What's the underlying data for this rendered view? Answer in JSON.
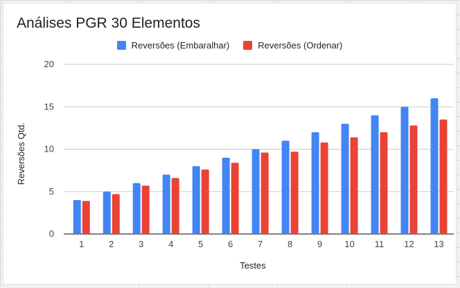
{
  "chart_data": {
    "type": "bar",
    "title": "Análises PGR 30 Elementos",
    "xlabel": "Testes",
    "ylabel": "Reversões Qtd.",
    "categories": [
      "1",
      "2",
      "3",
      "4",
      "5",
      "6",
      "7",
      "8",
      "9",
      "10",
      "11",
      "12",
      "13"
    ],
    "series": [
      {
        "name": "Reversões (Embaralhar)",
        "color": "#4285f4",
        "values": [
          4,
          5,
          6,
          7,
          8,
          9,
          10,
          11,
          12,
          13,
          14,
          15,
          16
        ]
      },
      {
        "name": "Reversões (Ordenar)",
        "color": "#ea4335",
        "values": [
          3.9,
          4.7,
          5.7,
          6.6,
          7.6,
          8.4,
          9.6,
          9.7,
          10.8,
          11.4,
          12,
          12.8,
          13.5
        ]
      }
    ],
    "ylim": [
      0,
      20
    ],
    "yticks": [
      "0",
      "5",
      "10",
      "15",
      "20"
    ],
    "grid": true,
    "legend_position": "top-center"
  }
}
